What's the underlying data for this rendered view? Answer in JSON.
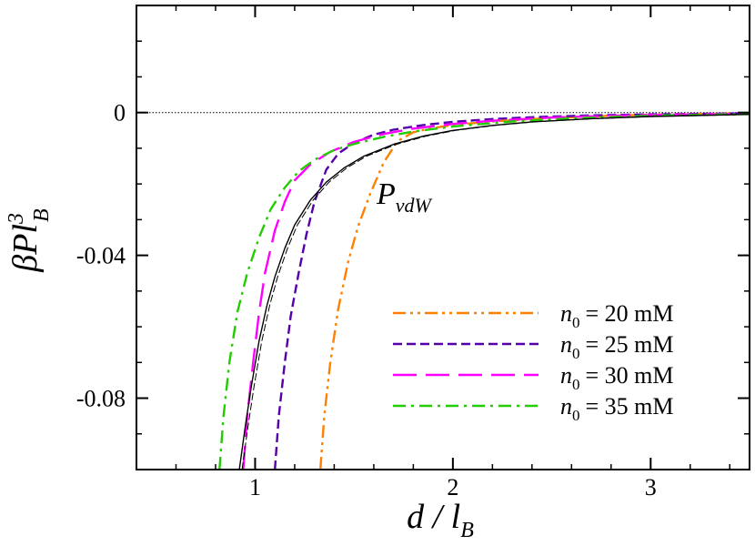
{
  "chart_data": {
    "type": "line",
    "xlabel": {
      "main": "d / l",
      "sub": "B"
    },
    "ylabel": {
      "main": "βPl",
      "sup": "3",
      "sub": "B"
    },
    "xlim": [
      0.4,
      3.5
    ],
    "ylim": [
      -0.1,
      0.03
    ],
    "x_ticks": [
      {
        "value": 1,
        "label": "1"
      },
      {
        "value": 2,
        "label": "2"
      },
      {
        "value": 3,
        "label": "3"
      }
    ],
    "y_ticks": [
      {
        "value": 0,
        "label": "0"
      },
      {
        "value": -0.04,
        "label": "-0.04"
      },
      {
        "value": -0.08,
        "label": "-0.08"
      }
    ],
    "zero_reference_line": true,
    "grid": false,
    "legend_position": "bottom-right",
    "legend_label_prefix": "n",
    "legend_label_subscript": "0",
    "annotation": {
      "main": "P",
      "sub": "vdW"
    },
    "series": [
      {
        "name": "n0 = 20 mM",
        "legend_value": "= 20 mM",
        "color": "#ff8000",
        "style": "dash-dot-dot",
        "x": [
          1.33,
          1.35,
          1.38,
          1.42,
          1.47,
          1.52,
          1.58,
          1.65,
          1.72,
          1.8,
          1.9,
          2.0,
          2.2,
          2.4,
          2.6,
          2.8,
          3.0,
          3.2,
          3.5
        ],
        "y": [
          -0.1,
          -0.085,
          -0.07,
          -0.055,
          -0.042,
          -0.032,
          -0.023,
          -0.014,
          -0.008,
          -0.0055,
          -0.0043,
          -0.0035,
          -0.0025,
          -0.0018,
          -0.0013,
          -0.0009,
          -0.0006,
          -0.0004,
          -0.0002
        ]
      },
      {
        "name": "n0 = 25 mM",
        "legend_value": "= 25 mM",
        "color": "#5500aa",
        "style": "dashed",
        "x": [
          1.1,
          1.12,
          1.15,
          1.18,
          1.22,
          1.26,
          1.3,
          1.36,
          1.42,
          1.5,
          1.6,
          1.7,
          1.85,
          2.0,
          2.2,
          2.4,
          2.7,
          3.0,
          3.5
        ],
        "y": [
          -0.1,
          -0.085,
          -0.07,
          -0.057,
          -0.045,
          -0.034,
          -0.025,
          -0.016,
          -0.0115,
          -0.0085,
          -0.0062,
          -0.0048,
          -0.0035,
          -0.0026,
          -0.0018,
          -0.0013,
          -0.0008,
          -0.0005,
          -0.0002
        ]
      },
      {
        "name": "n0 = 30 mM",
        "legend_value": "= 30 mM",
        "color": "#ff00ff",
        "style": "long-dash",
        "x": [
          0.94,
          0.96,
          0.99,
          1.02,
          1.05,
          1.1,
          1.15,
          1.2,
          1.28,
          1.38,
          1.5,
          1.65,
          1.8,
          2.0,
          2.2,
          2.5,
          2.8,
          3.1,
          3.5
        ],
        "y": [
          -0.1,
          -0.085,
          -0.07,
          -0.056,
          -0.045,
          -0.033,
          -0.025,
          -0.019,
          -0.0145,
          -0.011,
          -0.0082,
          -0.006,
          -0.0045,
          -0.0032,
          -0.0023,
          -0.0014,
          -0.0009,
          -0.0006,
          -0.0003
        ]
      },
      {
        "name": "n0 = 35 mM",
        "legend_value": "= 35 mM",
        "color": "#22cc00",
        "style": "dash-dot",
        "x": [
          0.82,
          0.84,
          0.87,
          0.91,
          0.96,
          1.02,
          1.08,
          1.15,
          1.22,
          1.3,
          1.4,
          1.5,
          1.65,
          1.8,
          2.0,
          2.3,
          2.6,
          3.0,
          3.5
        ],
        "y": [
          -0.1,
          -0.085,
          -0.07,
          -0.056,
          -0.045,
          -0.035,
          -0.027,
          -0.021,
          -0.0165,
          -0.0132,
          -0.0105,
          -0.0088,
          -0.0068,
          -0.0053,
          -0.0039,
          -0.0025,
          -0.0016,
          -0.0009,
          -0.0004
        ]
      },
      {
        "name": "PvdW",
        "color": "#000000",
        "style": "thin-solid",
        "x": [
          0.92,
          0.95,
          0.98,
          1.02,
          1.06,
          1.1,
          1.15,
          1.2,
          1.28,
          1.36,
          1.45,
          1.55,
          1.7,
          1.85,
          2.0,
          2.2,
          2.4,
          2.7,
          3.0,
          3.5
        ],
        "y": [
          -0.1,
          -0.088,
          -0.077,
          -0.064,
          -0.054,
          -0.046,
          -0.038,
          -0.0315,
          -0.0245,
          -0.0195,
          -0.0155,
          -0.0122,
          -0.0089,
          -0.0066,
          -0.005,
          -0.0036,
          -0.0026,
          -0.0017,
          -0.0011,
          -0.0005
        ]
      }
    ]
  }
}
